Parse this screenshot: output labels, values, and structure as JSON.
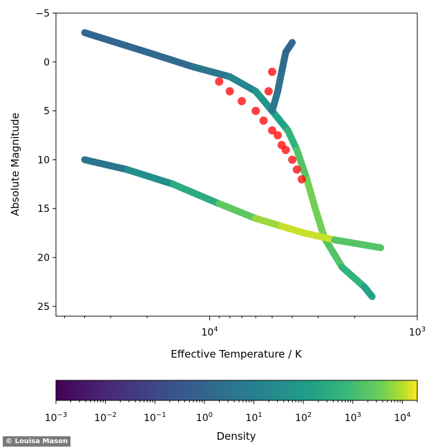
{
  "chart_data": {
    "type": "heatmap",
    "title": "",
    "xlabel": "Effective Temperature / K",
    "ylabel": "Absolute Magnitude",
    "x_scale": "log",
    "x_reversed": true,
    "xlim": [
      55000,
      1000
    ],
    "ylim": [
      26,
      -5
    ],
    "x_ticks": [
      {
        "value": 10000,
        "label_base": "10",
        "label_exp": "4"
      },
      {
        "value": 1000,
        "label_base": "10",
        "label_exp": "3"
      }
    ],
    "y_ticks": [
      -5,
      0,
      5,
      10,
      15,
      20,
      25
    ],
    "grid": false,
    "density_bands": [
      {
        "name": "main-sequence-giant-track",
        "points": [
          [
            40000,
            -3
          ],
          [
            20000,
            -1
          ],
          [
            12000,
            0.5
          ],
          [
            8000,
            1.5
          ],
          [
            6000,
            3
          ],
          [
            5000,
            5
          ],
          [
            4200,
            7
          ],
          [
            3800,
            9
          ],
          [
            3400,
            12
          ],
          [
            3100,
            15
          ],
          [
            2800,
            18
          ],
          [
            2300,
            21
          ],
          [
            1800,
            23
          ],
          [
            1650,
            24
          ]
        ],
        "density": [
          1,
          1,
          2,
          10,
          30,
          100,
          300,
          1000,
          3000,
          5000,
          3000,
          1000,
          300,
          100
        ]
      },
      {
        "name": "giant-branch",
        "points": [
          [
            5000,
            5
          ],
          [
            4700,
            3
          ],
          [
            4500,
            1
          ],
          [
            4300,
            -1
          ],
          [
            4000,
            -2
          ]
        ],
        "density": [
          10,
          3,
          3,
          1,
          1
        ]
      },
      {
        "name": "white-dwarf-sequence",
        "points": [
          [
            40000,
            10
          ],
          [
            25000,
            11
          ],
          [
            15000,
            12.5
          ],
          [
            9000,
            14.5
          ],
          [
            6000,
            16
          ],
          [
            4500,
            16.8
          ],
          [
            3500,
            17.5
          ],
          [
            2500,
            18.2
          ],
          [
            1500,
            19
          ]
        ],
        "density": [
          1,
          10,
          100,
          1000,
          5000,
          10000,
          15000,
          10000,
          300
        ]
      }
    ],
    "overlay_points": {
      "color": "#ff0000",
      "points": [
        [
          9000,
          2
        ],
        [
          8000,
          3
        ],
        [
          7000,
          4
        ],
        [
          6000,
          5
        ],
        [
          5500,
          6
        ],
        [
          5000,
          7
        ],
        [
          4700,
          7.5
        ],
        [
          4500,
          8.5
        ],
        [
          4300,
          9
        ],
        [
          4000,
          10
        ],
        [
          3800,
          11
        ],
        [
          3600,
          12
        ],
        [
          5200,
          3
        ],
        [
          5000,
          1
        ]
      ]
    },
    "colorbar": {
      "label": "Density",
      "scale": "log",
      "range": [
        0.001,
        20000
      ],
      "colormap": "viridis",
      "ticks": [
        {
          "value": 0.001,
          "label_base": "10",
          "label_exp": "−3"
        },
        {
          "value": 0.01,
          "label_base": "10",
          "label_exp": "−2"
        },
        {
          "value": 0.1,
          "label_base": "10",
          "label_exp": "−1"
        },
        {
          "value": 1,
          "label_base": "10",
          "label_exp": "0"
        },
        {
          "value": 10,
          "label_base": "10",
          "label_exp": "1"
        },
        {
          "value": 100,
          "label_base": "10",
          "label_exp": "2"
        },
        {
          "value": 1000,
          "label_base": "10",
          "label_exp": "3"
        },
        {
          "value": 10000,
          "label_base": "10",
          "label_exp": "4"
        }
      ]
    }
  },
  "y_tick_labels": [
    "−5",
    "0",
    "5",
    "10",
    "15",
    "20",
    "25"
  ],
  "credit": "© Louisa Mason"
}
